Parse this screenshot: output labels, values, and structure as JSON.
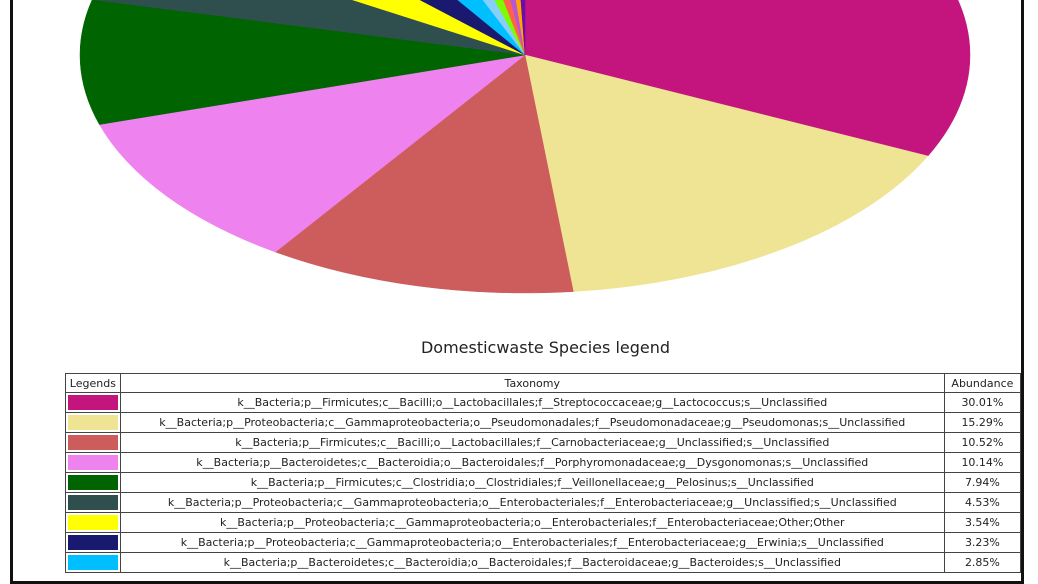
{
  "colors": [
    "#c4157e",
    "#efe494",
    "#cd5c5c",
    "#ee82ee",
    "#006400",
    "#2f4f4f",
    "#ffff00",
    "#191970",
    "#00bfff",
    "#87cefa",
    "#7cfc00",
    "#ff6347",
    "#ba55d3",
    "#ffa500",
    "#6a0dad"
  ],
  "legend": {
    "title": "Domesticwaste Species legend",
    "headers": {
      "legends": "Legends",
      "taxonomy": "Taxonomy",
      "abundance": "Abundance"
    },
    "rows": [
      {
        "taxonomy": "k__Bacteria;p__Firmicutes;c__Bacilli;o__Lactobacillales;f__Streptococcaceae;g__Lactococcus;s__Unclassified",
        "abundance": "30.01%"
      },
      {
        "taxonomy": "k__Bacteria;p__Proteobacteria;c__Gammaproteobacteria;o__Pseudomonadales;f__Pseudomonadaceae;g__Pseudomonas;s__Unclassified",
        "abundance": "15.29%"
      },
      {
        "taxonomy": "k__Bacteria;p__Firmicutes;c__Bacilli;o__Lactobacillales;f__Carnobacteriaceae;g__Unclassified;s__Unclassified",
        "abundance": "10.52%"
      },
      {
        "taxonomy": "k__Bacteria;p__Bacteroidetes;c__Bacteroidia;o__Bacteroidales;f__Porphyromonadaceae;g__Dysgonomonas;s__Unclassified",
        "abundance": "10.14%"
      },
      {
        "taxonomy": "k__Bacteria;p__Firmicutes;c__Clostridia;o__Clostridiales;f__Veillonellaceae;g__Pelosinus;s__Unclassified",
        "abundance": "7.94%"
      },
      {
        "taxonomy": "k__Bacteria;p__Proteobacteria;c__Gammaproteobacteria;o__Enterobacteriales;f__Enterobacteriaceae;g__Unclassified;s__Unclassified",
        "abundance": "4.53%"
      },
      {
        "taxonomy": "k__Bacteria;p__Proteobacteria;c__Gammaproteobacteria;o__Enterobacteriales;f__Enterobacteriaceae;Other;Other",
        "abundance": "3.54%"
      },
      {
        "taxonomy": "k__Bacteria;p__Proteobacteria;c__Gammaproteobacteria;o__Enterobacteriales;f__Enterobacteriaceae;g__Erwinia;s__Unclassified",
        "abundance": "3.23%"
      },
      {
        "taxonomy": "k__Bacteria;p__Bacteroidetes;c__Bacteroidia;o__Bacteroidales;f__Bacteroidaceae;g__Bacteroides;s__Unclassified",
        "abundance": "2.85%"
      }
    ]
  },
  "chart_data": {
    "type": "pie",
    "title": "",
    "categories": [
      "k__Bacteria;p__Firmicutes;c__Bacilli;o__Lactobacillales;f__Streptococcaceae;g__Lactococcus;s__Unclassified",
      "k__Bacteria;p__Proteobacteria;c__Gammaproteobacteria;o__Pseudomonadales;f__Pseudomonadaceae;g__Pseudomonas;s__Unclassified",
      "k__Bacteria;p__Firmicutes;c__Bacilli;o__Lactobacillales;f__Carnobacteriaceae;g__Unclassified;s__Unclassified",
      "k__Bacteria;p__Bacteroidetes;c__Bacteroidia;o__Bacteroidales;f__Porphyromonadaceae;g__Dysgonomonas;s__Unclassified",
      "k__Bacteria;p__Firmicutes;c__Clostridia;o__Clostridiales;f__Veillonellaceae;g__Pelosinus;s__Unclassified",
      "k__Bacteria;p__Proteobacteria;c__Gammaproteobacteria;o__Enterobacteriales;f__Enterobacteriaceae;g__Unclassified;s__Unclassified",
      "k__Bacteria;p__Proteobacteria;c__Gammaproteobacteria;o__Enterobacteriales;f__Enterobacteriaceae;Other;Other",
      "k__Bacteria;p__Proteobacteria;c__Gammaproteobacteria;o__Enterobacteriales;f__Enterobacteriaceae;g__Erwinia;s__Unclassified",
      "k__Bacteria;p__Bacteroidetes;c__Bacteroidia;o__Bacteroidales;f__Bacteroidaceae;g__Bacteroides;s__Unclassified",
      "",
      "",
      "",
      "",
      "",
      ""
    ],
    "values": [
      30.01,
      15.29,
      10.52,
      10.14,
      7.94,
      4.53,
      3.54,
      3.23,
      2.85,
      1.5,
      1.2,
      1.0,
      0.8,
      0.7,
      0.6
    ],
    "legend_position": "table below"
  }
}
